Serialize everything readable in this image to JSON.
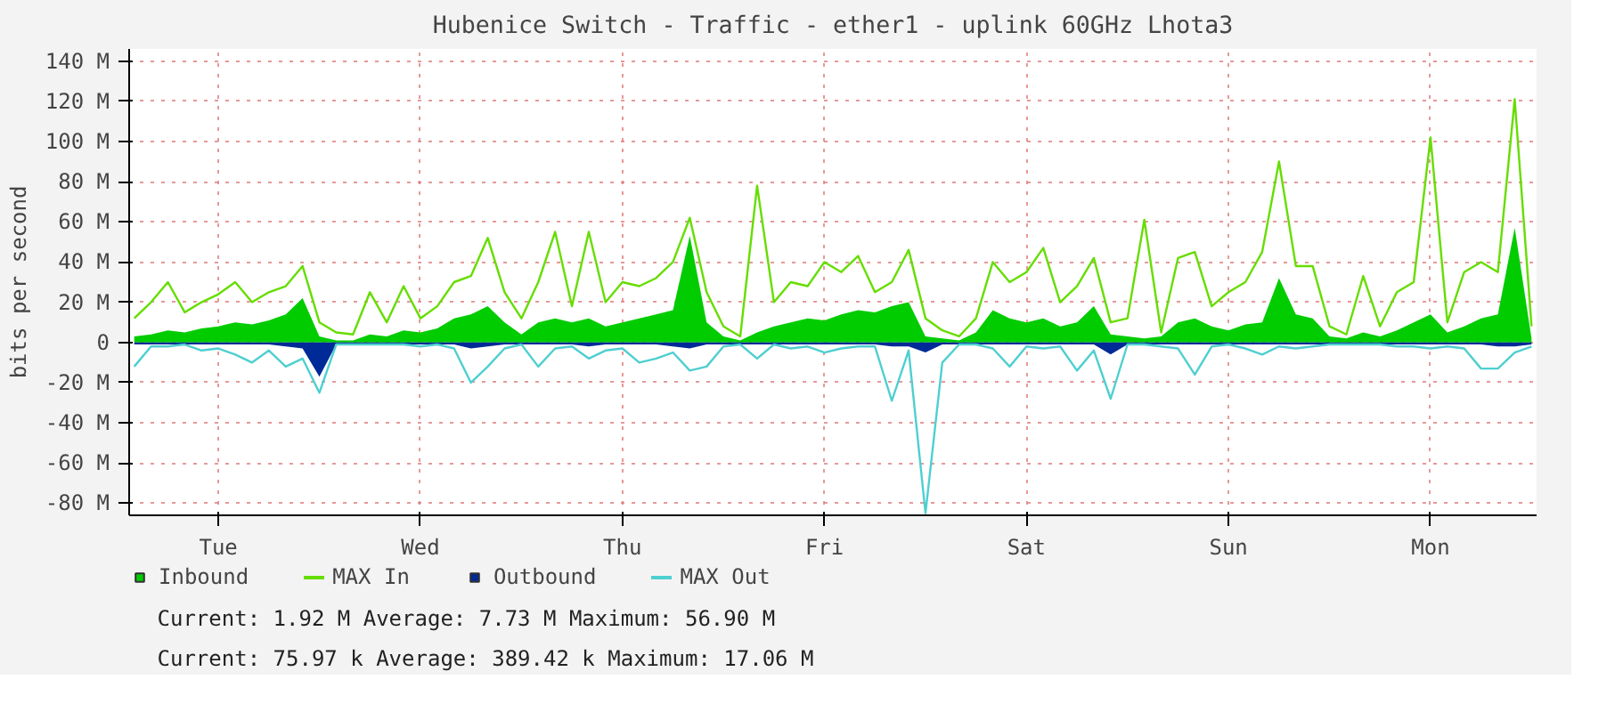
{
  "chart_data": {
    "type": "area",
    "title": "Hubenice Switch - Traffic - ether1 - uplink 60GHz Lhota3",
    "ylabel": "bits per second",
    "categories": [
      null,
      null,
      null,
      null,
      null,
      "Tue",
      null,
      null,
      null,
      null,
      null,
      null,
      null,
      null,
      null,
      null,
      null,
      "Wed",
      null,
      null,
      null,
      null,
      null,
      null,
      null,
      null,
      null,
      null,
      null,
      "Thu",
      null,
      null,
      null,
      null,
      null,
      null,
      null,
      null,
      null,
      null,
      null,
      "Fri",
      null,
      null,
      null,
      null,
      null,
      null,
      null,
      null,
      null,
      null,
      null,
      "Sat",
      null,
      null,
      null,
      null,
      null,
      null,
      null,
      null,
      null,
      null,
      null,
      "Sun",
      null,
      null,
      null,
      null,
      null,
      null,
      null,
      null,
      null,
      null,
      null,
      "Mon",
      null,
      null,
      null,
      null,
      null,
      null
    ],
    "series": [
      {
        "name": "Inbound",
        "color": "#00cc00",
        "values": [
          3,
          4,
          6,
          5,
          7,
          8,
          10,
          9,
          11,
          14,
          22,
          3,
          1,
          1,
          4,
          3,
          6,
          5,
          7,
          12,
          14,
          18,
          10,
          4,
          10,
          12,
          10,
          12,
          8,
          10,
          12,
          14,
          16,
          53,
          10,
          3,
          1,
          5,
          8,
          10,
          12,
          11,
          14,
          16,
          15,
          18,
          20,
          3,
          2,
          1,
          5,
          16,
          12,
          10,
          12,
          8,
          10,
          18,
          4,
          3,
          2,
          3,
          10,
          12,
          8,
          6,
          9,
          10,
          32,
          14,
          12,
          3,
          2,
          5,
          3,
          6,
          10,
          14,
          5,
          8,
          12,
          14,
          57,
          2
        ]
      },
      {
        "name": "MAX In",
        "type": "line",
        "color": "#66dd00",
        "values": [
          12,
          20,
          30,
          15,
          20,
          24,
          30,
          20,
          25,
          28,
          38,
          10,
          5,
          4,
          25,
          10,
          28,
          12,
          18,
          30,
          33,
          52,
          25,
          12,
          30,
          55,
          18,
          55,
          20,
          30,
          28,
          32,
          40,
          62,
          25,
          8,
          3,
          78,
          20,
          30,
          28,
          40,
          35,
          43,
          25,
          30,
          46,
          12,
          6,
          3,
          12,
          40,
          30,
          35,
          47,
          20,
          28,
          42,
          10,
          12,
          61,
          5,
          42,
          45,
          18,
          25,
          30,
          45,
          90,
          38,
          38,
          8,
          4,
          33,
          8,
          25,
          30,
          102,
          10,
          35,
          40,
          35,
          121,
          8
        ]
      },
      {
        "name": "Outbound",
        "color": "#002a97",
        "values": [
          -1,
          -1,
          -1,
          -1,
          -1,
          -1,
          -1,
          -1,
          -1,
          -2,
          -3,
          -17,
          -1,
          -1,
          -1,
          -1,
          -1,
          -1,
          -1,
          -1,
          -3,
          -2,
          -1,
          -1,
          -1,
          -1,
          -1,
          -2,
          -1,
          -1,
          -1,
          -1,
          -2,
          -3,
          -1,
          -1,
          -1,
          -1,
          -1,
          -1,
          -1,
          -1,
          -1,
          -1,
          -1,
          -2,
          -2,
          -5,
          -1,
          -1,
          -1,
          -1,
          -1,
          -1,
          -1,
          -1,
          -1,
          -1,
          -6,
          -1,
          -1,
          -1,
          -1,
          -1,
          -1,
          -1,
          -1,
          -1,
          -1,
          -1,
          -1,
          -1,
          -1,
          -1,
          -1,
          -1,
          -1,
          -1,
          -1,
          -1,
          -1,
          -2,
          -2,
          -1
        ]
      },
      {
        "name": "MAX Out",
        "type": "line",
        "color": "#4ecfd0",
        "values": [
          -12,
          -2,
          -2,
          -1,
          -4,
          -3,
          -6,
          -10,
          -4,
          -12,
          -8,
          -25,
          -1,
          -1,
          -1,
          -1,
          -1,
          -2,
          -1,
          -3,
          -20,
          -12,
          -3,
          -1,
          -12,
          -3,
          -2,
          -8,
          -4,
          -3,
          -10,
          -8,
          -5,
          -14,
          -12,
          -2,
          -1,
          -8,
          -1,
          -3,
          -2,
          -5,
          -3,
          -2,
          -2,
          -29,
          -4,
          -85,
          -10,
          -1,
          -1,
          -3,
          -12,
          -2,
          -3,
          -2,
          -14,
          -4,
          -28,
          -1,
          -1,
          -2,
          -3,
          -16,
          -2,
          -1,
          -3,
          -6,
          -2,
          -3,
          -2,
          -1,
          -1,
          -1,
          -1,
          -2,
          -2,
          -3,
          -2,
          -3,
          -13,
          -13,
          -5,
          -2
        ]
      }
    ],
    "ylim": [
      -86,
      146
    ],
    "yticks": [
      {
        "value": -80,
        "label": "-80 M"
      },
      {
        "value": -60,
        "label": "-60 M"
      },
      {
        "value": -40,
        "label": "-40 M"
      },
      {
        "value": -20,
        "label": "-20 M"
      },
      0,
      {
        "value": 20,
        "label": "20 M"
      },
      {
        "value": 40,
        "label": "40 M"
      },
      {
        "value": 60,
        "label": "60 M"
      },
      {
        "value": 80,
        "label": "80 M"
      },
      {
        "value": 100,
        "label": "100 M"
      },
      {
        "value": 120,
        "label": "120 M"
      },
      {
        "value": 140,
        "label": "140 M"
      }
    ],
    "grid": true,
    "legend": "bottom",
    "annotations": [
      "Current:    1.92 M  Average:    7.73 M  Maximum:   56.90 M",
      "Current:   75.97 k  Average:  389.42 k  Maximum:   17.06 M"
    ]
  }
}
